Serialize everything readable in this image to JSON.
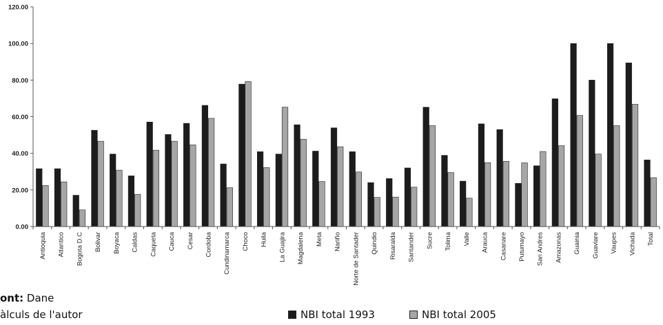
{
  "chart_data": {
    "type": "bar",
    "categories": [
      "Antioquia",
      "Atlantico",
      "Bogota D.C",
      "Bolivar",
      "Boyaca",
      "Caldas",
      "Caqueta",
      "Cauca",
      "Cesar",
      "Cordoba",
      "Cundinamarca",
      "Choco",
      "Huila",
      "La Guajira",
      "Magdalena",
      "Meta",
      "Nariño",
      "Norte de Santader",
      "Quindio",
      "Risaralda",
      "Santander",
      "Sucre",
      "Tolima",
      "Valle",
      "Arauca",
      "Casanare",
      "Putumayo",
      "San Andres",
      "Amazonas",
      "Guainia",
      "Guaviare",
      "Vaupes",
      "Vichada",
      "Total"
    ],
    "series": [
      {
        "name": "NBI total 1993",
        "color": "#1c1c1c",
        "values": [
          31.6,
          31.6,
          17.1,
          52.6,
          39.6,
          27.7,
          57.1,
          50.3,
          56.4,
          66.2,
          34.2,
          77.8,
          40.9,
          39.6,
          55.6,
          41.2,
          53.9,
          40.9,
          24.0,
          26.2,
          32.0,
          65.2,
          38.9,
          24.8,
          56.1,
          53.0,
          23.6,
          33.2,
          69.8,
          100.0,
          80.0,
          100.0,
          89.4,
          36.4
        ]
      },
      {
        "name": "NBI total 2005",
        "color": "#a6a6a6",
        "values": [
          22.4,
          24.4,
          9.1,
          46.6,
          30.8,
          17.6,
          41.7,
          46.6,
          44.6,
          59.1,
          21.2,
          79.2,
          32.2,
          65.2,
          47.7,
          24.6,
          43.6,
          29.8,
          15.9,
          16.1,
          21.5,
          55.1,
          29.5,
          15.5,
          34.9,
          35.6,
          34.8,
          41.0,
          44.2,
          60.7,
          39.6,
          55.1,
          66.8,
          26.7
        ]
      }
    ],
    "ylim": [
      0,
      120
    ],
    "yticks": [
      "0.00",
      "20.00",
      "40.00",
      "60.00",
      "80.00",
      "100.00",
      "120.00"
    ],
    "legend_position": "bottom",
    "grid": false
  },
  "footer": {
    "source_label": "ont:",
    "source_value": " Dane",
    "note": "àlculs de l'autor"
  }
}
